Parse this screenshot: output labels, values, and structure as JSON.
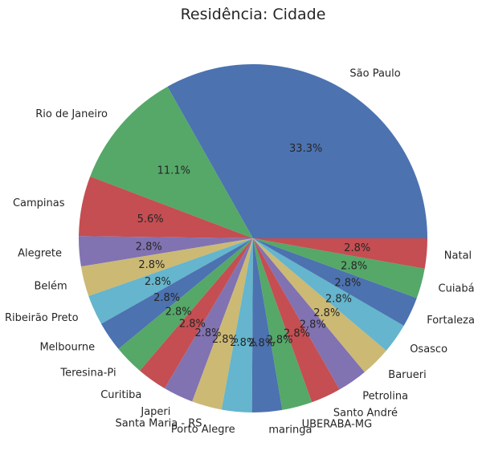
{
  "chart_data": {
    "type": "pie",
    "title": "Residência: Cidade",
    "start_angle": 0,
    "direction": "counterclockwise",
    "slices": [
      {
        "label": "São Paulo",
        "value": 33.3,
        "pct_text": "33.3%",
        "color": "#4c72b0"
      },
      {
        "label": "Rio de Janeiro",
        "value": 11.1,
        "pct_text": "11.1%",
        "color": "#55a868"
      },
      {
        "label": "Campinas",
        "value": 5.6,
        "pct_text": "5.6%",
        "color": "#c44e52"
      },
      {
        "label": "Alegrete",
        "value": 2.8,
        "pct_text": "2.8%",
        "color": "#8172b2"
      },
      {
        "label": "Belém",
        "value": 2.8,
        "pct_text": "2.8%",
        "color": "#ccb974"
      },
      {
        "label": "Ribeirão Preto",
        "value": 2.8,
        "pct_text": "2.8%",
        "color": "#64b5cd"
      },
      {
        "label": "Melbourne",
        "value": 2.8,
        "pct_text": "2.8%",
        "color": "#4c72b0"
      },
      {
        "label": "Teresina-Pi",
        "value": 2.8,
        "pct_text": "2.8%",
        "color": "#55a868"
      },
      {
        "label": "Curitiba",
        "value": 2.8,
        "pct_text": "2.8%",
        "color": "#c44e52"
      },
      {
        "label": "Japeri",
        "value": 2.8,
        "pct_text": "2.8%",
        "color": "#8172b2"
      },
      {
        "label": "Santa Maria - RS",
        "value": 2.8,
        "pct_text": "2.8%",
        "color": "#ccb974"
      },
      {
        "label": "Porto Alegre",
        "value": 2.8,
        "pct_text": "2.8%",
        "color": "#64b5cd"
      },
      {
        "label": "maringa",
        "value": 2.8,
        "pct_text": "2.8%",
        "color": "#4c72b0"
      },
      {
        "label": "UBERABA-MG",
        "value": 2.8,
        "pct_text": "2.8%",
        "color": "#55a868"
      },
      {
        "label": "Santo André",
        "value": 2.8,
        "pct_text": "2.8%",
        "color": "#c44e52"
      },
      {
        "label": "Petrolina",
        "value": 2.8,
        "pct_text": "2.8%",
        "color": "#8172b2"
      },
      {
        "label": "Barueri",
        "value": 2.8,
        "pct_text": "2.8%",
        "color": "#ccb974"
      },
      {
        "label": "Osasco",
        "value": 2.8,
        "pct_text": "2.8%",
        "color": "#64b5cd"
      },
      {
        "label": "Fortaleza",
        "value": 2.8,
        "pct_text": "2.8%",
        "color": "#4c72b0"
      },
      {
        "label": "Cuiabá",
        "value": 2.8,
        "pct_text": "2.8%",
        "color": "#55a868"
      },
      {
        "label": "Natal",
        "value": 2.8,
        "pct_text": "2.8%",
        "color": "#c44e52"
      }
    ]
  }
}
